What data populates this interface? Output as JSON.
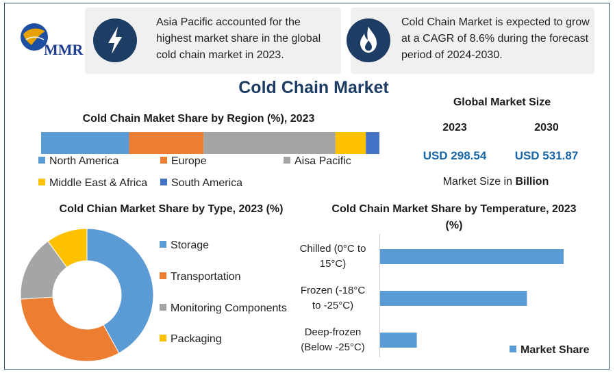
{
  "logo": {
    "text": "MMR"
  },
  "info": [
    {
      "text": "Asia Pacific accounted for the highest market share in the global cold chain market in 2023.",
      "icon": "lightning-icon"
    },
    {
      "text": "Cold Chain Market is expected to grow at a CAGR of 8.6% during the forecast period of 2024-2030.",
      "icon": "flame-icon"
    }
  ],
  "title": "Cold Chain Market",
  "market_size": {
    "heading": "Global Market Size",
    "years": [
      "2023",
      "2030"
    ],
    "values": [
      "USD 298.54",
      "USD 531.87"
    ],
    "unit_prefix": "Market Size in",
    "unit_bold": "Billion"
  },
  "colors": {
    "north_america": "#5b9bd5",
    "europe": "#ed7d31",
    "asia_pacific": "#a5a5a5",
    "middle_east": "#ffc000",
    "south_america": "#4472c4",
    "title": "#1e3d64",
    "value_blue": "#1565a8"
  },
  "chart_data": [
    {
      "type": "bar",
      "orientation": "horizontal-stacked",
      "title": "Cold Chain Maket Share by Region (%), 2023",
      "categories": [
        "North America",
        "Europe",
        "Aisa Pacific",
        "Middle East & Africa",
        "South America"
      ],
      "values": [
        26,
        22,
        39,
        9,
        4
      ],
      "colors": [
        "#5b9bd5",
        "#ed7d31",
        "#a5a5a5",
        "#ffc000",
        "#4472c4"
      ],
      "legend": "bottom"
    },
    {
      "type": "pie",
      "variant": "donut",
      "title": "Cold Chian Market Share by Type, 2023 (%)",
      "categories": [
        "Storage",
        "Transportation",
        "Monitoring Components",
        "Packaging"
      ],
      "values": [
        42,
        32,
        16,
        10
      ],
      "colors": [
        "#5b9bd5",
        "#ed7d31",
        "#a5a5a5",
        "#ffc000"
      ],
      "legend": "right"
    },
    {
      "type": "bar",
      "orientation": "horizontal",
      "title": "Cold Chain Market Share by Temperature, 2023 (%)",
      "categories": [
        "Chilled (0°C to 15°C)",
        "Frozen (-18°C to -25°C)",
        "Deep-frozen (Below -25°C)"
      ],
      "category_lines": [
        [
          "Chilled (0°C to",
          "15°C)"
        ],
        [
          "Frozen (-18°C",
          "to -25°C)"
        ],
        [
          "Deep-frozen",
          "(Below -25°C)"
        ]
      ],
      "series": [
        {
          "name": "Market Share",
          "values": [
            50,
            40,
            10
          ],
          "color": "#5b9bd5"
        }
      ],
      "legend": "bottom-right"
    }
  ]
}
